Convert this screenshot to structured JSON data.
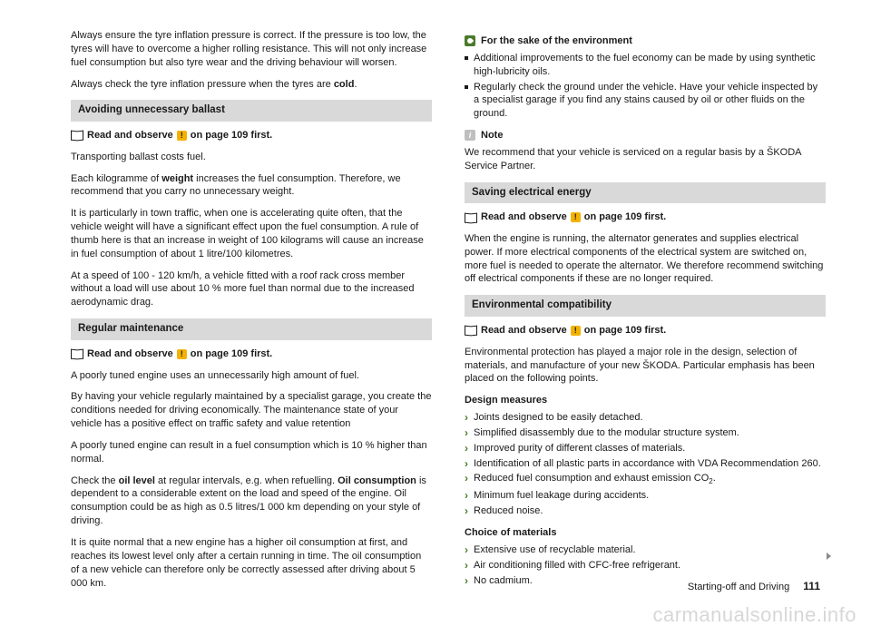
{
  "colors": {
    "text": "#1a1a1a",
    "heading_bg": "#d9d9d9",
    "warn_bg": "#f3b200",
    "env_bg": "#4a7a2a",
    "note_bg": "#bfbfbf",
    "watermark": "#d7d7d7",
    "background": "#ffffff"
  },
  "left": {
    "p1": "Always ensure the tyre inflation pressure is correct. If the pressure is too low, the tyres will have to overcome a higher rolling resistance. This will not only increase fuel consumption but also tyre wear and the driving behaviour will worsen.",
    "p2a": "Always check the tyre inflation pressure when the tyres are ",
    "p2b": "cold",
    "p2c": ".",
    "h1": "Avoiding unnecessary ballast",
    "ro": {
      "pre": "Read and observe",
      "post": "on page 109 first."
    },
    "p3": "Transporting ballast costs fuel.",
    "p4a": "Each kilogramme of ",
    "p4b": "weight",
    "p4c": " increases the fuel consumption. Therefore, we recommend that you carry no unnecessary weight.",
    "p5": "It is particularly in town traffic, when one is accelerating quite often, that the vehicle weight will have a significant effect upon the fuel consumption. A rule of thumb here is that an increase in weight of 100 kilograms will cause an increase in fuel consumption of about 1 litre/100 kilometres.",
    "p6": "At a speed of 100 - 120 km/h, a vehicle fitted with a roof rack cross member without a load will use about 10 % more fuel than normal due to the increased aerodynamic drag.",
    "h2": "Regular maintenance",
    "p7": "A poorly tuned engine uses an unnecessarily high amount of fuel.",
    "p8": "By having your vehicle regularly maintained by a specialist garage, you create the conditions needed for driving economically. The maintenance state of your vehicle has a positive effect on traffic safety and value retention",
    "p9": "A poorly tuned engine can result in a fuel consumption which is 10 % higher than normal.",
    "p10a": "Check the ",
    "p10b": "oil level",
    "p10c": " at regular intervals, e.g. when refuelling. ",
    "p10d": "Oil consumption",
    "p10e": " is dependent to a considerable extent on the load and speed of the engine. Oil consumption could be as high as 0.5 litres/1 000 km depending on your style of driving.",
    "p11": "It is quite normal that a new engine has a higher oil consumption at first, and reaches its lowest level only after a certain running in time. The oil consumption of a new vehicle can therefore only be correctly assessed after driving about 5 000 km."
  },
  "right": {
    "env_head": "For the sake of the environment",
    "env_items": [
      "Additional improvements to the fuel economy can be made by using synthetic high-lubricity oils.",
      "Regularly check the ground under the vehicle. Have your vehicle inspected by a specialist garage if you find any stains caused by oil or other fluids on the ground."
    ],
    "note_head": "Note",
    "note_body": "We recommend that your vehicle is serviced on a regular basis by a ŠKODA Service Partner.",
    "h3": "Saving electrical energy",
    "p12": "When the engine is running, the alternator generates and supplies electrical power. If more electrical components of the electrical system are switched on, more fuel is needed to operate the alternator. We therefore recommend switching off electrical components if these are no longer required.",
    "h4": "Environmental compatibility",
    "p13": "Environmental protection has played a major role in the design, selection of materials, and manufacture of your new ŠKODA. Particular emphasis has been placed on the following points.",
    "design_head": "Design measures",
    "design_items": [
      "Joints designed to be easily detached.",
      "Simplified disassembly due to the modular structure system.",
      "Improved purity of different classes of materials.",
      "Identification of all plastic parts in accordance with VDA Recommendation 260.",
      "Reduced fuel consumption and exhaust emission CO",
      "Minimum fuel leakage during accidents.",
      "Reduced noise."
    ],
    "co2_sub": "2",
    "materials_head": "Choice of materials",
    "materials_items": [
      "Extensive use of recyclable material.",
      "Air conditioning filled with CFC-free refrigerant.",
      "No cadmium."
    ]
  },
  "footer": {
    "section": "Starting-off and Driving",
    "page": "111"
  },
  "watermark": "carmanualsonline.info"
}
